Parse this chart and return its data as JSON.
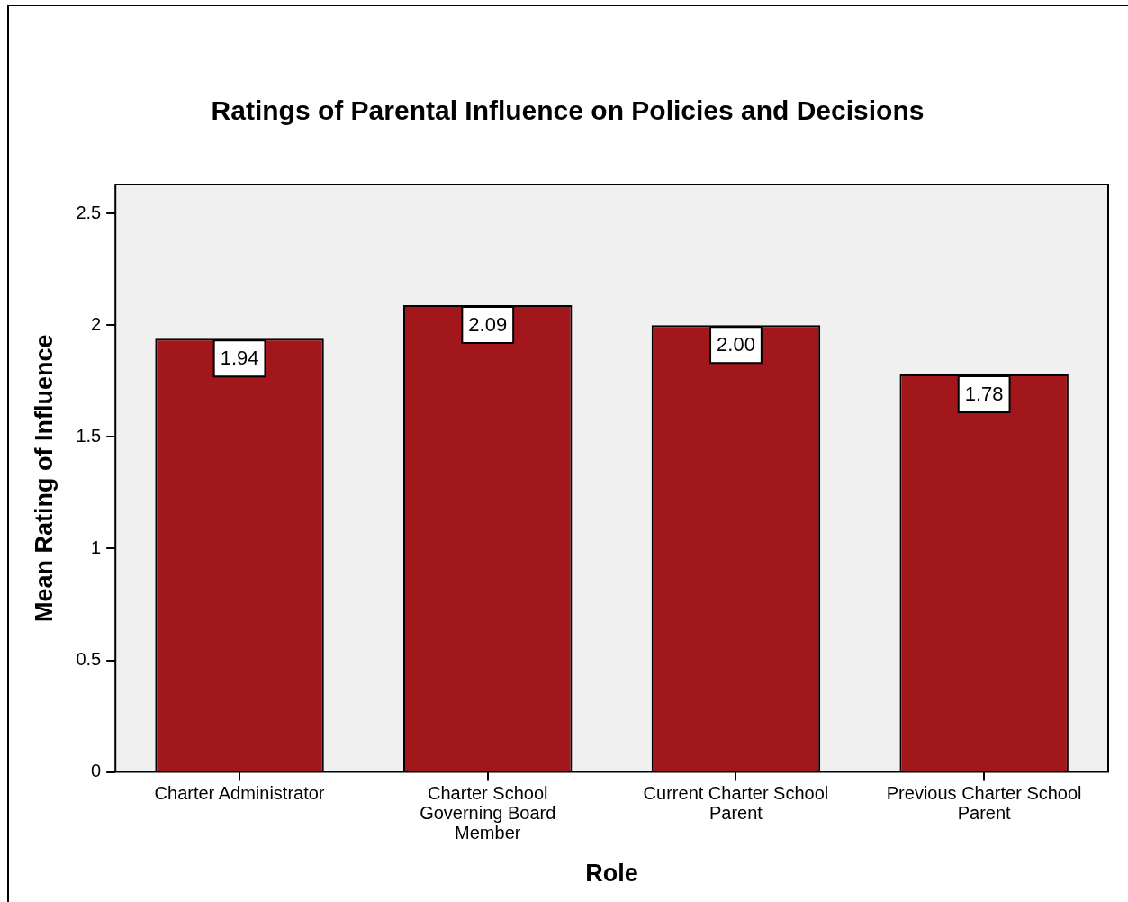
{
  "chart_data": {
    "type": "bar",
    "title": "Ratings of Parental Influence on Policies and Decisions",
    "xlabel": "Role",
    "ylabel": "Mean Rating of Influence",
    "categories": [
      "Charter Administrator",
      "Charter School Governing Board Member",
      "Current Charter School Parent",
      "Previous Charter School Parent"
    ],
    "values": [
      1.94,
      2.09,
      2.0,
      1.78
    ],
    "value_labels": [
      "1.94",
      "2.09",
      "2.00",
      "1.78"
    ],
    "color": "#a1171c",
    "ylim": [
      0,
      2.63
    ],
    "yticks": [
      0,
      0.5,
      1,
      1.5,
      2,
      2.5
    ],
    "grid": false,
    "legend": false
  }
}
